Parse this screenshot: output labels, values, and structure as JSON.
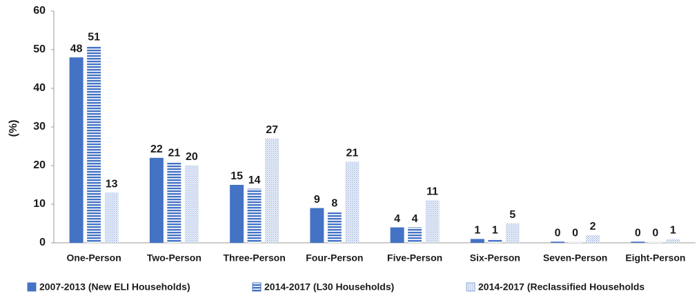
{
  "chart_data": {
    "type": "bar",
    "y_label": "(%)",
    "categories": [
      "One-Person",
      "Two-Person",
      "Three-Person",
      "Four-Person",
      "Five-Person",
      "Six-Person",
      "Seven-Person",
      "Eight-Person"
    ],
    "series": [
      {
        "name": "2007-2013 (New ELI Households)",
        "color": "#4472c4",
        "pattern": "solid",
        "values": [
          48,
          22,
          15,
          9,
          4,
          1,
          0.3,
          0.3
        ],
        "value_labels": [
          "48",
          "22",
          "15",
          "9",
          "4",
          "1",
          "0",
          "0"
        ]
      },
      {
        "name": "2014-2017 (L30 Households)",
        "color": "#4472c4",
        "pattern": "stripes",
        "values": [
          51,
          21,
          14,
          8,
          4,
          1,
          0.3,
          0.3
        ],
        "value_labels": [
          "51",
          "21",
          "14",
          "8",
          "4",
          "1",
          "0",
          "0"
        ]
      },
      {
        "name": "2014-2017 (Reclassified Households",
        "color": "#8faadc",
        "pattern": "dots",
        "values": [
          13,
          20,
          27,
          21,
          11,
          5,
          2,
          1
        ]
      }
    ],
    "ylim": [
      0,
      60
    ],
    "yticks": [
      0,
      10,
      20,
      30,
      40,
      50,
      60
    ]
  }
}
